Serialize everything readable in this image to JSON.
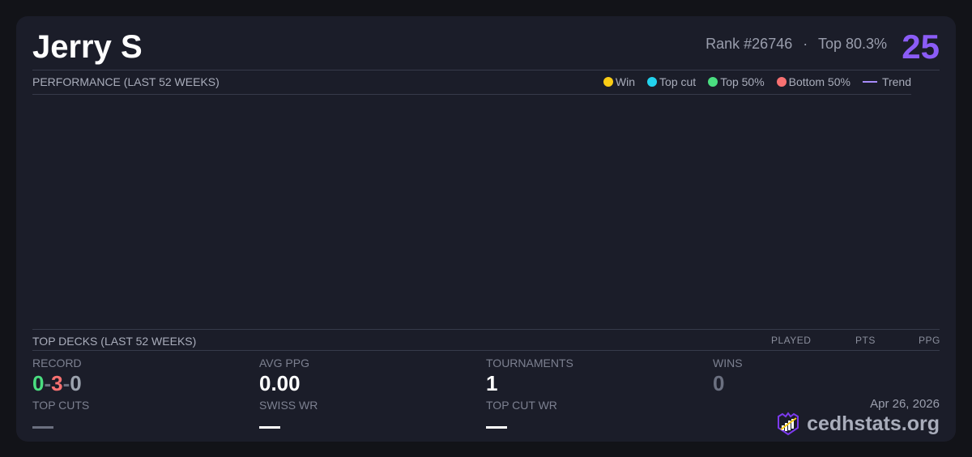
{
  "player": {
    "name": "Jerry S",
    "rank": "Rank #26746",
    "separator": "·",
    "top_percent": "Top 80.3%",
    "score": "25"
  },
  "performance": {
    "title": "PERFORMANCE (LAST 52 WEEKS)",
    "legend": [
      {
        "label": "Win",
        "color": "#facc15"
      },
      {
        "label": "Top cut",
        "color": "#22d3ee"
      },
      {
        "label": "Top 50%",
        "color": "#4ade80"
      },
      {
        "label": "Bottom 50%",
        "color": "#f87171"
      },
      {
        "label": "Trend",
        "color": "#a78bfa"
      }
    ]
  },
  "top_decks": {
    "title": "TOP DECKS (LAST 52 WEEKS)",
    "columns": [
      "PLAYED",
      "PTS",
      "PPG"
    ]
  },
  "stats": {
    "record": {
      "label": "RECORD",
      "wins": "0",
      "losses": "3",
      "draws": "0",
      "sep": "-",
      "colors": {
        "wins": "#4ade80",
        "losses": "#f87171",
        "draws": "#9ca3af"
      }
    },
    "avg_ppg": {
      "label": "AVG PPG",
      "value": "0.00"
    },
    "tournaments": {
      "label": "TOURNAMENTS",
      "value": "1"
    },
    "wins": {
      "label": "WINS",
      "value": "0"
    },
    "top_cuts": {
      "label": "TOP CUTS"
    },
    "swiss_wr": {
      "label": "SWISS WR"
    },
    "top_cut_wr": {
      "label": "TOP CUT WR"
    }
  },
  "footer": {
    "date": "Apr 26, 2026",
    "brand": "cedhstats.org"
  }
}
